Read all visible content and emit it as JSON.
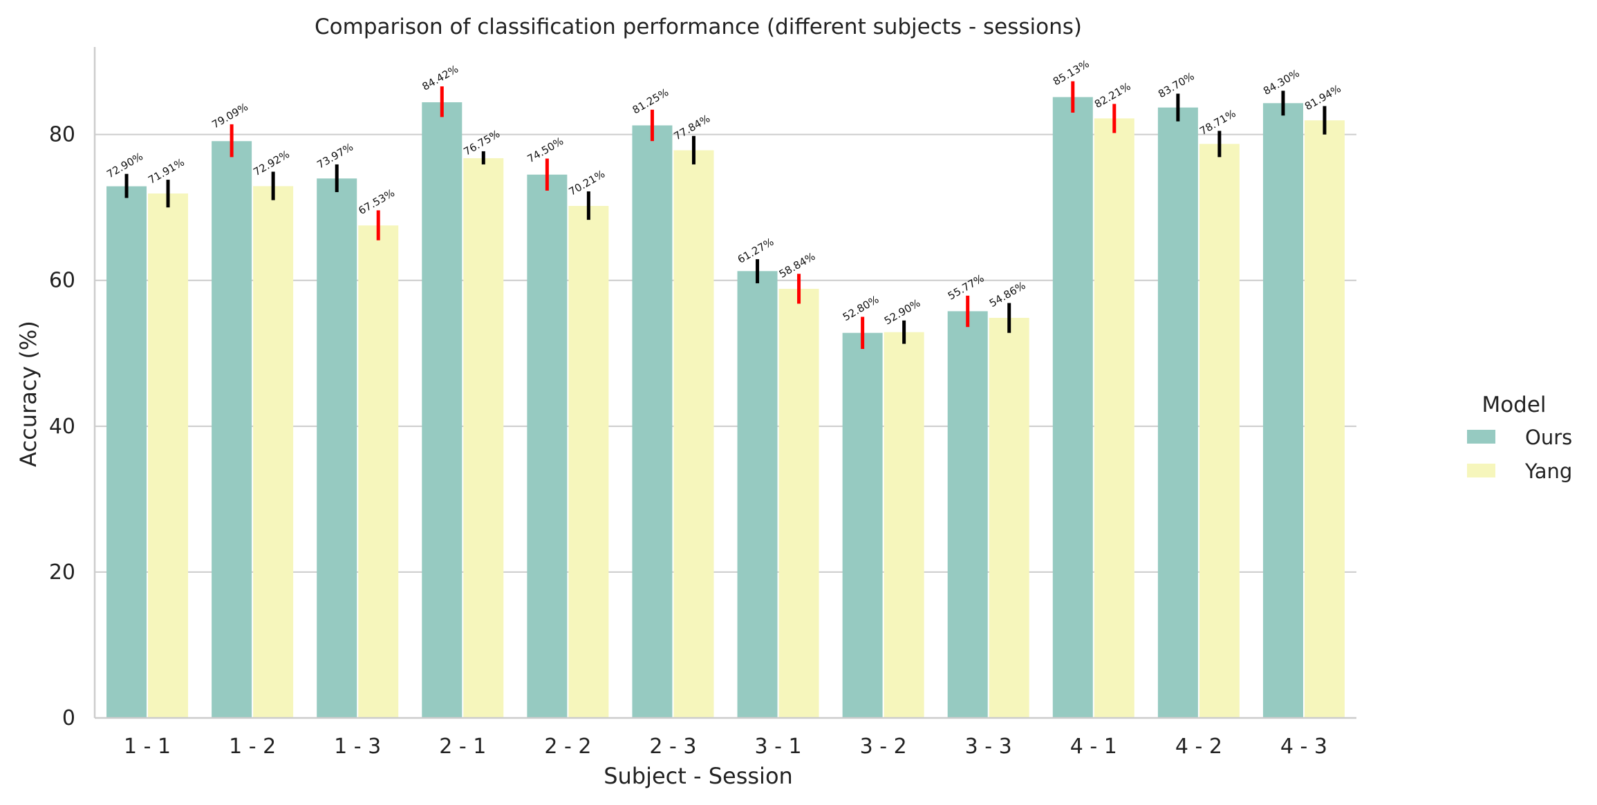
{
  "chart_data": {
    "type": "bar",
    "title": "Comparison of classification performance (different subjects - sessions)",
    "xlabel": "Subject - Session",
    "ylabel": "Accuracy (%)",
    "ylim": [
      0,
      92
    ],
    "yticks": [
      0,
      20,
      40,
      60,
      80
    ],
    "grid": "horizontal",
    "legend_position": "right",
    "legend_title": "Model",
    "categories": [
      "1 - 1",
      "1 - 2",
      "1 - 3",
      "2 - 1",
      "2 - 2",
      "2 - 3",
      "3 - 1",
      "3 - 2",
      "3 - 3",
      "4 - 1",
      "4 - 2",
      "4 - 3"
    ],
    "series": [
      {
        "name": "Ours",
        "color": "#96cac1",
        "values": [
          72.9,
          79.09,
          73.97,
          84.42,
          74.5,
          81.25,
          61.27,
          52.8,
          55.77,
          85.13,
          83.7,
          84.3
        ],
        "labels": [
          "72.90%",
          "79.09%",
          "73.97%",
          "84.42%",
          "74.50%",
          "81.25%",
          "61.27%",
          "52.80%",
          "55.77%",
          "85.13%",
          "83.70%",
          "84.30%"
        ],
        "error_low": [
          71.3,
          76.9,
          72.1,
          82.4,
          72.3,
          79.1,
          59.6,
          50.6,
          53.6,
          83.0,
          81.8,
          82.6
        ],
        "error_high": [
          74.6,
          81.4,
          75.9,
          86.6,
          76.7,
          83.4,
          62.9,
          55.0,
          57.9,
          87.3,
          85.6,
          86.0
        ],
        "error_colors": [
          "#000000",
          "#ff0000",
          "#000000",
          "#ff0000",
          "#ff0000",
          "#ff0000",
          "#000000",
          "#ff0000",
          "#ff0000",
          "#ff0000",
          "#000000",
          "#000000"
        ]
      },
      {
        "name": "Yang",
        "color": "#f6f6bc",
        "values": [
          71.91,
          72.92,
          67.53,
          76.75,
          70.21,
          77.84,
          58.84,
          52.9,
          54.86,
          82.21,
          78.71,
          81.94
        ],
        "labels": [
          "71.91%",
          "72.92%",
          "67.53%",
          "76.75%",
          "70.21%",
          "77.84%",
          "58.84%",
          "52.90%",
          "54.86%",
          "82.21%",
          "78.71%",
          "81.94%"
        ],
        "error_low": [
          70.0,
          71.0,
          65.5,
          75.9,
          68.3,
          75.9,
          56.8,
          51.3,
          52.8,
          80.2,
          76.9,
          80.0
        ],
        "error_high": [
          73.8,
          74.9,
          69.6,
          77.7,
          72.2,
          79.8,
          60.9,
          54.5,
          56.9,
          84.2,
          80.5,
          83.9
        ],
        "error_colors": [
          "#000000",
          "#000000",
          "#ff0000",
          "#000000",
          "#000000",
          "#000000",
          "#ff0000",
          "#000000",
          "#000000",
          "#ff0000",
          "#000000",
          "#000000"
        ]
      }
    ]
  }
}
